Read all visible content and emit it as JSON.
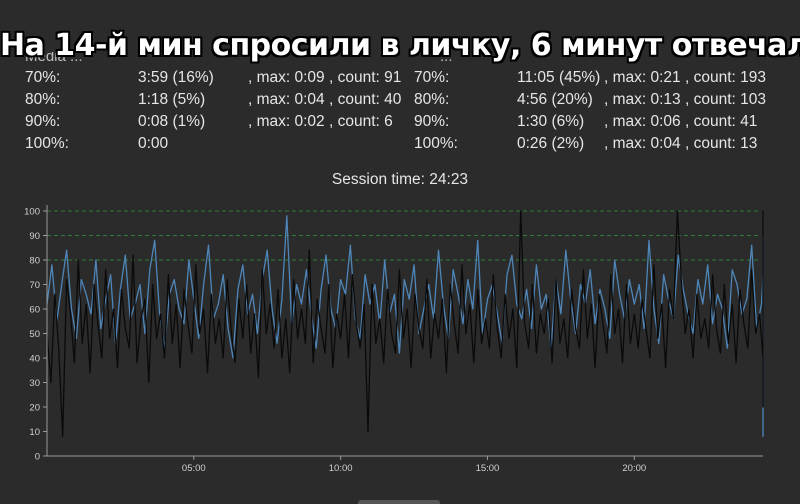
{
  "caption": "На 14-й мин спросили в личку, 6 минут отвечал",
  "left_panel": {
    "header_fragment": "Media ...",
    "rows": [
      {
        "label": "70%:",
        "value": "3:59 (16%)",
        "extra": ", max: 0:09 , count: 91"
      },
      {
        "label": "80%:",
        "value": "1:18 (5%)",
        "extra": ", max: 0:04 , count: 40"
      },
      {
        "label": "90%:",
        "value": "0:08 (1%)",
        "extra": ", max: 0:02 , count: 6"
      },
      {
        "label": "100%:",
        "value": "0:00",
        "extra": ""
      }
    ]
  },
  "right_panel": {
    "header_fragment": "...",
    "rows": [
      {
        "label": "70%:",
        "value": "11:05 (45%)",
        "extra": ", max: 0:21 , count: 193"
      },
      {
        "label": "80%:",
        "value": "4:56 (20%)",
        "extra": ", max: 0:13 , count: 103"
      },
      {
        "label": "90%:",
        "value": "1:30 (6%)",
        "extra": ", max: 0:06 , count: 41"
      },
      {
        "label": "100%:",
        "value": "0:26 (2%)",
        "extra": ", max: 0:04 , count: 13"
      }
    ]
  },
  "session_time": "Session time: 24:23",
  "chart_data": {
    "type": "line",
    "xlim_seconds": [
      0,
      1463
    ],
    "ylim": [
      0,
      100
    ],
    "yticks": [
      0,
      10,
      20,
      30,
      40,
      50,
      60,
      70,
      80,
      90,
      100
    ],
    "xtick_labels": [
      "05:00",
      "10:00",
      "15:00",
      "20:00"
    ],
    "xtick_seconds": [
      300,
      600,
      900,
      1200
    ],
    "threshold_lines": [
      80,
      90,
      100
    ],
    "grid": false,
    "colors": {
      "series_blue": "#4f86b9",
      "series_black": "#0a0a0a",
      "threshold": "#2e7d32",
      "axis": "#9a9a9a"
    },
    "series": [
      {
        "color": "#4f86b9",
        "x_step_seconds": 10,
        "values": [
          62,
          78,
          55,
          70,
          84,
          60,
          48,
          72,
          66,
          58,
          80,
          52,
          64,
          74,
          46,
          68,
          82,
          56,
          62,
          70,
          50,
          76,
          88,
          58,
          44,
          66,
          72,
          60,
          54,
          80,
          64,
          48,
          70,
          86,
          56,
          62,
          74,
          52,
          40,
          68,
          78,
          58,
          66,
          50,
          72,
          84,
          60,
          46,
          64,
          98,
          54,
          70,
          62,
          76,
          58,
          44,
          68,
          82,
          60,
          52,
          72,
          66,
          86,
          56,
          48,
          74,
          62,
          70,
          54,
          80,
          58,
          66,
          42,
          72,
          64,
          78,
          50,
          60,
          70,
          56,
          84,
          62,
          48,
          76,
          66,
          54,
          72,
          60,
          88,
          50,
          64,
          70,
          58,
          46,
          74,
          82,
          62,
          56,
          68,
          52,
          78,
          60,
          66,
          44,
          72,
          58,
          84,
          64,
          50,
          70,
          62,
          76,
          54,
          68,
          60,
          48,
          80,
          66,
          56,
          72,
          62,
          70,
          52,
          88,
          60,
          46,
          74,
          64,
          56,
          82,
          68,
          58,
          50,
          72,
          62,
          78,
          54,
          66,
          60,
          44,
          76,
          70,
          58,
          64,
          86,
          52,
          62,
          74,
          56,
          68,
          60,
          80,
          50,
          66,
          72,
          58,
          48,
          74,
          62,
          84,
          56,
          66,
          60,
          70,
          52,
          78,
          64,
          58,
          46,
          72,
          62,
          90,
          56,
          68,
          60,
          54,
          76,
          64,
          50,
          70,
          62,
          80,
          58,
          66,
          8,
          72,
          60,
          54,
          78,
          64,
          88,
          56,
          50,
          70,
          62,
          74,
          58,
          66,
          48,
          80,
          60,
          54,
          72,
          64,
          84,
          56,
          62,
          70,
          52,
          76,
          60,
          66,
          58,
          46,
          74,
          68,
          62,
          82,
          56,
          50,
          72,
          64,
          60,
          78,
          54,
          66,
          86,
          58,
          62,
          70,
          52,
          74,
          64,
          56,
          48,
          80,
          62,
          66,
          58,
          72,
          54,
          76,
          60,
          64,
          84,
          90
        ]
      },
      {
        "color": "#0a0a0a",
        "x_step_seconds": 8,
        "values": [
          50,
          30,
          66,
          44,
          8,
          72,
          58,
          38,
          80,
          46,
          62,
          34,
          70,
          54,
          40,
          76,
          48,
          60,
          36,
          68,
          52,
          44,
          82,
          38,
          56,
          64,
          30,
          70,
          48,
          58,
          40,
          74,
          46,
          62,
          36,
          68,
          54,
          42,
          78,
          50,
          60,
          34,
          66,
          46,
          56,
          40,
          72,
          52,
          38,
          64,
          48,
          70,
          42,
          58,
          32,
          76,
          50,
          62,
          44,
          68,
          40,
          56,
          34,
          72,
          48,
          60,
          46,
          84,
          38,
          64,
          52,
          42,
          70,
          36,
          58,
          48,
          66,
          40,
          74,
          54,
          44,
          62,
          10,
          70,
          46,
          56,
          38,
          68,
          50,
          42,
          76,
          48,
          60,
          36,
          66,
          52,
          44,
          72,
          40,
          58,
          48,
          64,
          34,
          70,
          54,
          42,
          78,
          50,
          62,
          38,
          68,
          46,
          56,
          44,
          74,
          52,
          40,
          66,
          48,
          60,
          36,
          100,
          54,
          44,
          70,
          42,
          58,
          50,
          64,
          38,
          72,
          46,
          56,
          40,
          68,
          52,
          44,
          76,
          48,
          62,
          36,
          66,
          54,
          42,
          74,
          50,
          60,
          38,
          70,
          46,
          58,
          44,
          64,
          52,
          40,
          78,
          48,
          62,
          36,
          68,
          56,
          100,
          72,
          50,
          60,
          40,
          66,
          48,
          56,
          44,
          74,
          52,
          42,
          70,
          46,
          62,
          38,
          68,
          54,
          44,
          76,
          50,
          58,
          40,
          64,
          48,
          56,
          42,
          72,
          52,
          38,
          66,
          46,
          60,
          44,
          70,
          54,
          40,
          20,
          48,
          62,
          36,
          68,
          50,
          56,
          44,
          74,
          52,
          42,
          66,
          46,
          60,
          38,
          72,
          54,
          44,
          80,
          48,
          58,
          40,
          68,
          52,
          56,
          44,
          74,
          46,
          62,
          38,
          66,
          54,
          42,
          70,
          50,
          60,
          36,
          78,
          48,
          56,
          44,
          72,
          52,
          40,
          64,
          46,
          58,
          42,
          70,
          54,
          38,
          66,
          50,
          60,
          44,
          74,
          48,
          56,
          40,
          68,
          52,
          100,
          72,
          46,
          58,
          38,
          66,
          54,
          44,
          70,
          50,
          60,
          40,
          76,
          48,
          56,
          42,
          68,
          52,
          44,
          72,
          46,
          62,
          38,
          66,
          54,
          40,
          74,
          50,
          58,
          44,
          70,
          48,
          56,
          40,
          66,
          52,
          60,
          44,
          72,
          46,
          58,
          38,
          68,
          54,
          42,
          76,
          50,
          62,
          40,
          70,
          48,
          56,
          44,
          66,
          52,
          58,
          40,
          74,
          46,
          60,
          42,
          68,
          54,
          44,
          72,
          50,
          56,
          40,
          66,
          48,
          62,
          38,
          74,
          52,
          58,
          44,
          70,
          46,
          56,
          42,
          68,
          54,
          60,
          38,
          76,
          50,
          58,
          44,
          72,
          48,
          56,
          40,
          66,
          52,
          62,
          44,
          74,
          46,
          58,
          40,
          70,
          54,
          56,
          42,
          68,
          50,
          60,
          38,
          72,
          48,
          56,
          44,
          66,
          52,
          58,
          40,
          74,
          46,
          62,
          42,
          70,
          54,
          56,
          44,
          68,
          50,
          60,
          38,
          72,
          48,
          58,
          44,
          66,
          52,
          56,
          40,
          74,
          46,
          60,
          42,
          70,
          54,
          58,
          44,
          68,
          50,
          56,
          40,
          72,
          48,
          62,
          38,
          66,
          52,
          58,
          44,
          74,
          46,
          56,
          42,
          70,
          54,
          60,
          40,
          68,
          50,
          58,
          44,
          72,
          48,
          56,
          40,
          66,
          52,
          62,
          38,
          74,
          46,
          58,
          44,
          70,
          54,
          56,
          42,
          68,
          50,
          60,
          40,
          72,
          48,
          58,
          44,
          66,
          52,
          56,
          40,
          74,
          46,
          62,
          42,
          70,
          54,
          58,
          44,
          68,
          50,
          56,
          38,
          72,
          48,
          60,
          44,
          66,
          52,
          58,
          40,
          74,
          46,
          56,
          42,
          70,
          54,
          62,
          44,
          68,
          50,
          58,
          40,
          72,
          48,
          56,
          44,
          66,
          52,
          60,
          38,
          74,
          46,
          58,
          42,
          70,
          54,
          56,
          44,
          68,
          50,
          62,
          40,
          72,
          48,
          58,
          44,
          66,
          52,
          56,
          40,
          74,
          46,
          60,
          42,
          70,
          54,
          58,
          44,
          68,
          50,
          56,
          40,
          72,
          48,
          62,
          38,
          66,
          52,
          58,
          44,
          74,
          46,
          56,
          42,
          70,
          54,
          60,
          40,
          68,
          50,
          58,
          44,
          72,
          48,
          56,
          40,
          66,
          52,
          62,
          44,
          74,
          46,
          58,
          42,
          70,
          54,
          56,
          44,
          68,
          50,
          60,
          38,
          72,
          48,
          58,
          44,
          66,
          52,
          56,
          40,
          74,
          46,
          62,
          42,
          70,
          54,
          58,
          44,
          68,
          50,
          56,
          40,
          72,
          48,
          60,
          44,
          66,
          52,
          58,
          40,
          74,
          46,
          56,
          42,
          70,
          54,
          62,
          44,
          68,
          50,
          58,
          40,
          72,
          48,
          56,
          44,
          66,
          52,
          60,
          38,
          74,
          46,
          58,
          42,
          70,
          54,
          56,
          44,
          68,
          50,
          62,
          40,
          72,
          48,
          58,
          44,
          66,
          52,
          56,
          40,
          74,
          46,
          60,
          42,
          70,
          54,
          58,
          44,
          68,
          50,
          56,
          40,
          72,
          48,
          62,
          38,
          66,
          52,
          58,
          44,
          74,
          46,
          56,
          42,
          70,
          54,
          60,
          40,
          68,
          50,
          58,
          44,
          72,
          48,
          56,
          40,
          66,
          52,
          62,
          44,
          74,
          46,
          58,
          42,
          70,
          54,
          56,
          44,
          68,
          50,
          60,
          38,
          72,
          48,
          58,
          44,
          66,
          52,
          56,
          40,
          74,
          46,
          62,
          42,
          70,
          54,
          58,
          44,
          68,
          50,
          56,
          40,
          72,
          48,
          60,
          44,
          66,
          52,
          58,
          40,
          74,
          46,
          56,
          42,
          70,
          54,
          62,
          44,
          68,
          50,
          58,
          40,
          72,
          48,
          56,
          44,
          66,
          52,
          60,
          38,
          74,
          46,
          58,
          42,
          70,
          54,
          56,
          44,
          68,
          50,
          62,
          40,
          72,
          48,
          58,
          44,
          66,
          52,
          56,
          40,
          74,
          46,
          60,
          42,
          70,
          54,
          58,
          44,
          68,
          50,
          56,
          40,
          72,
          48,
          62,
          38,
          66,
          52,
          58,
          44,
          74,
          46,
          56,
          42,
          70,
          54,
          60,
          40,
          68,
          50,
          58,
          44,
          72,
          48,
          56,
          40,
          66,
          52,
          62,
          44,
          74,
          46,
          58,
          42,
          70,
          54,
          56,
          44,
          68,
          50,
          60,
          38
        ]
      }
    ]
  }
}
